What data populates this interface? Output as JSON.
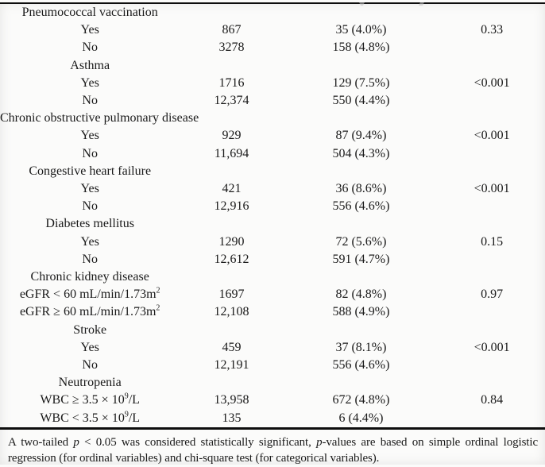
{
  "table": {
    "groups": [
      {
        "label": "Pneumococcal vaccination",
        "rows": [
          {
            "label": [
              {
                "t": "Yes"
              }
            ],
            "n": "867",
            "events": "35 (4.0%)",
            "p": "0.33"
          },
          {
            "label": [
              {
                "t": "No"
              }
            ],
            "n": "3278",
            "events": "158 (4.8%)",
            "p": ""
          }
        ]
      },
      {
        "label": "Asthma",
        "rows": [
          {
            "label": [
              {
                "t": "Yes"
              }
            ],
            "n": "1716",
            "events": "129 (7.5%)",
            "p": "<0.001"
          },
          {
            "label": [
              {
                "t": "No"
              }
            ],
            "n": "12,374",
            "events": "550 (4.4%)",
            "p": ""
          }
        ]
      },
      {
        "label": "Chronic obstructive pulmonary disease",
        "rows": [
          {
            "label": [
              {
                "t": "Yes"
              }
            ],
            "n": "929",
            "events": "87 (9.4%)",
            "p": "<0.001"
          },
          {
            "label": [
              {
                "t": "No"
              }
            ],
            "n": "11,694",
            "events": "504 (4.3%)",
            "p": ""
          }
        ]
      },
      {
        "label": "Congestive heart failure",
        "rows": [
          {
            "label": [
              {
                "t": "Yes"
              }
            ],
            "n": "421",
            "events": "36 (8.6%)",
            "p": "<0.001"
          },
          {
            "label": [
              {
                "t": "No"
              }
            ],
            "n": "12,916",
            "events": "556 (4.6%)",
            "p": ""
          }
        ]
      },
      {
        "label": "Diabetes mellitus",
        "rows": [
          {
            "label": [
              {
                "t": "Yes"
              }
            ],
            "n": "1290",
            "events": "72 (5.6%)",
            "p": "0.15"
          },
          {
            "label": [
              {
                "t": "No"
              }
            ],
            "n": "12,612",
            "events": "591 (4.7%)",
            "p": ""
          }
        ]
      },
      {
        "label": "Chronic kidney disease",
        "rows": [
          {
            "label": [
              {
                "t": "eGFR < 60 mL/min/1.73m"
              },
              {
                "t": "2",
                "sup": true
              }
            ],
            "n": "1697",
            "events": "82 (4.8%)",
            "p": "0.97"
          },
          {
            "label": [
              {
                "t": "eGFR ≥ 60 mL/min/1.73m"
              },
              {
                "t": "2",
                "sup": true
              }
            ],
            "n": "12,108",
            "events": "588 (4.9%)",
            "p": ""
          }
        ]
      },
      {
        "label": "Stroke",
        "rows": [
          {
            "label": [
              {
                "t": "Yes"
              }
            ],
            "n": "459",
            "events": "37 (8.1%)",
            "p": "<0.001"
          },
          {
            "label": [
              {
                "t": "No"
              }
            ],
            "n": "12,191",
            "events": "556 (4.6%)",
            "p": ""
          }
        ]
      },
      {
        "label": "Neutropenia",
        "rows": [
          {
            "label": [
              {
                "t": "WBC ≥ 3.5 × 10"
              },
              {
                "t": "9",
                "sup": true
              },
              {
                "t": "/L"
              }
            ],
            "n": "13,958",
            "events": "672 (4.8%)",
            "p": "0.84"
          },
          {
            "label": [
              {
                "t": "WBC < 3.5 × 10"
              },
              {
                "t": "9",
                "sup": true
              },
              {
                "t": "/L"
              }
            ],
            "n": "135",
            "events": "6 (4.4%)",
            "p": ""
          }
        ]
      }
    ]
  },
  "footnote": {
    "lines": [
      [
        {
          "t": "A two-tailed "
        },
        {
          "t": "p",
          "i": true
        },
        {
          "t": " < 0.05 was considered statistically significant, "
        },
        {
          "t": "p",
          "i": true
        },
        {
          "t": "-values are based on simple ordinal logistic"
        }
      ],
      [
        {
          "t": "regression (for ordinal variables) and chi-square test (for categorical variables)."
        }
      ]
    ]
  }
}
